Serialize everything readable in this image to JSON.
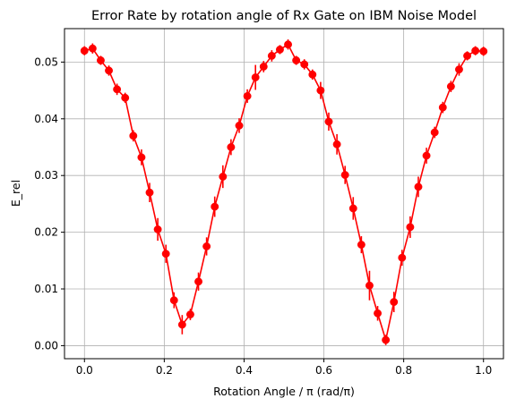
{
  "chart_data": {
    "type": "line",
    "title": "Error Rate by rotation angle of Rx Gate on IBM Noise Model",
    "xlabel": "Rotation Angle / π (rad/π)",
    "ylabel": "E_rel",
    "xlim": [
      -0.05,
      1.05
    ],
    "ylim": [
      -0.0023,
      0.0559
    ],
    "xticks": [
      0.0,
      0.2,
      0.4,
      0.6,
      0.8,
      1.0
    ],
    "xtick_labels": [
      "0.0",
      "0.2",
      "0.4",
      "0.6",
      "0.8",
      "1.0"
    ],
    "yticks": [
      0.0,
      0.01,
      0.02,
      0.03,
      0.04,
      0.05
    ],
    "ytick_labels": [
      "0.00",
      "0.01",
      "0.02",
      "0.03",
      "0.04",
      "0.05"
    ],
    "grid": true,
    "color": "#ff0000",
    "marker": "circle",
    "error_bars": true,
    "series": [
      {
        "x": [
          0.0,
          0.0204,
          0.0408,
          0.0612,
          0.0816,
          0.102,
          0.1224,
          0.1429,
          0.1633,
          0.1837,
          0.2041,
          0.2245,
          0.2449,
          0.2653,
          0.2857,
          0.3061,
          0.3265,
          0.3469,
          0.3673,
          0.3878,
          0.4082,
          0.4286,
          0.449,
          0.4694,
          0.4898,
          0.5102,
          0.5306,
          0.551,
          0.5714,
          0.5918,
          0.6122,
          0.6327,
          0.6531,
          0.6735,
          0.6939,
          0.7143,
          0.7347,
          0.7551,
          0.7755,
          0.7959,
          0.8163,
          0.8367,
          0.8571,
          0.8776,
          0.898,
          0.9184,
          0.9388,
          0.9592,
          0.9796,
          1.0
        ],
        "values": [
          0.052,
          0.0524,
          0.0503,
          0.0485,
          0.0452,
          0.0437,
          0.037,
          0.0332,
          0.027,
          0.0205,
          0.0162,
          0.008,
          0.0037,
          0.0055,
          0.0113,
          0.0175,
          0.0245,
          0.0298,
          0.035,
          0.0388,
          0.044,
          0.0473,
          0.0492,
          0.0511,
          0.0522,
          0.0531,
          0.0503,
          0.0496,
          0.0478,
          0.045,
          0.0395,
          0.0355,
          0.0301,
          0.0242,
          0.0178,
          0.0106,
          0.0057,
          0.001,
          0.0077,
          0.0155,
          0.0209,
          0.028,
          0.0335,
          0.0376,
          0.042,
          0.0457,
          0.0487,
          0.0511,
          0.052,
          0.0519
        ],
        "errors": [
          0.0008,
          0.0009,
          0.0008,
          0.0009,
          0.001,
          0.0009,
          0.001,
          0.0014,
          0.0017,
          0.002,
          0.0016,
          0.0014,
          0.0017,
          0.001,
          0.0016,
          0.0016,
          0.0018,
          0.002,
          0.0014,
          0.0013,
          0.0012,
          0.0022,
          0.001,
          0.001,
          0.0008,
          0.0009,
          0.0008,
          0.0009,
          0.0009,
          0.0015,
          0.0016,
          0.0018,
          0.0016,
          0.002,
          0.0015,
          0.0026,
          0.0013,
          0.0009,
          0.0018,
          0.0014,
          0.0019,
          0.0018,
          0.0014,
          0.001,
          0.001,
          0.001,
          0.0011,
          0.0008,
          0.0008,
          0.0008
        ]
      }
    ]
  }
}
